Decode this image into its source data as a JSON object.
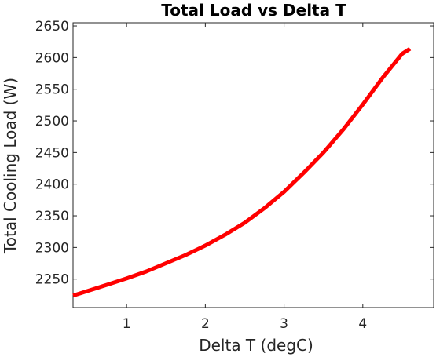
{
  "chart_data": {
    "type": "line",
    "title": "Total Load vs Delta T",
    "xlabel": "Delta T (degC)",
    "ylabel": "Total Cooling Load (W)",
    "xlim": [
      0.32,
      4.9
    ],
    "ylim": [
      2205,
      2655
    ],
    "xticks": [
      1,
      2,
      3,
      4
    ],
    "yticks": [
      2250,
      2300,
      2350,
      2400,
      2450,
      2500,
      2550,
      2600,
      2650
    ],
    "grid": false,
    "series": [
      {
        "color": "#ff0000",
        "x": [
          0.32,
          0.5,
          0.75,
          1.0,
          1.25,
          1.5,
          1.75,
          2.0,
          2.25,
          2.5,
          2.75,
          3.0,
          3.25,
          3.5,
          3.75,
          4.0,
          4.25,
          4.5,
          4.6
        ],
        "y": [
          2224,
          2231,
          2241,
          2251,
          2262,
          2275,
          2288,
          2303,
          2320,
          2339,
          2362,
          2388,
          2418,
          2450,
          2486,
          2526,
          2568,
          2606,
          2614
        ]
      }
    ]
  }
}
